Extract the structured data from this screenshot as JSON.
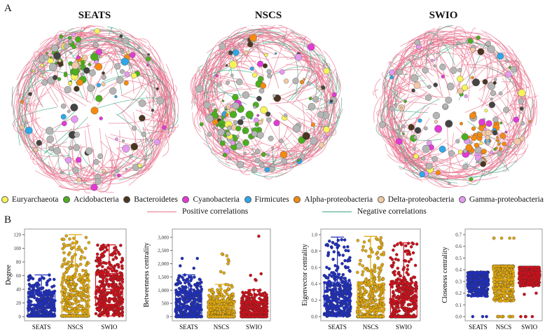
{
  "panel_a_label": "A",
  "panel_b_label": "B",
  "networks": [
    {
      "title": "SEATS"
    },
    {
      "title": "NSCS"
    },
    {
      "title": "SWIO"
    }
  ],
  "legend": {
    "taxa": [
      {
        "label": "Euryarchaeota",
        "color": "#f7f35a"
      },
      {
        "label": "Acidobacteria",
        "color": "#4cae1e"
      },
      {
        "label": "Bacteroidetes",
        "color": "#4a3520"
      },
      {
        "label": "Cyanobacteria",
        "color": "#e23ad6"
      },
      {
        "label": "Firmicutes",
        "color": "#2ea7e8"
      },
      {
        "label": "Alpha-proteobacteria",
        "color": "#f48a10"
      },
      {
        "label": "Delta-proteobacteria",
        "color": "#f2c9a6"
      },
      {
        "label": "Gamma-proteobacteria",
        "color": "#e49af0"
      }
    ],
    "edges": [
      {
        "label": "Positive correlations",
        "color": "#e8738f"
      },
      {
        "label": "Negative correlations",
        "color": "#3ca67e"
      }
    ]
  },
  "chart_data": [
    {
      "type": "box-strip",
      "ylabel": "Degree",
      "categories": [
        "SEATS",
        "NSCS",
        "SWIO"
      ],
      "ylim": [
        0,
        120
      ],
      "yticks": [
        0,
        20,
        40,
        60,
        80,
        100,
        120
      ],
      "tick_labels": [
        "0",
        "20",
        "40",
        "60",
        "80",
        "100",
        "120"
      ],
      "series": [
        {
          "name": "SEATS",
          "color": "#1f2fc0",
          "min": 1,
          "q1": 1,
          "median": 18,
          "q3": 35,
          "max": 61
        },
        {
          "name": "NSCS",
          "color": "#e0a80e",
          "min": 1,
          "q1": 1,
          "median": 8,
          "q3": 58,
          "max": 120
        },
        {
          "name": "SWIO",
          "color": "#d0101a",
          "min": 1,
          "q1": 18,
          "median": 40,
          "q3": 63,
          "max": 105
        }
      ]
    },
    {
      "type": "box-strip",
      "ylabel": "Betweenness centrality",
      "categories": [
        "SEATS",
        "NSCS",
        "SWIO"
      ],
      "ylim": [
        0,
        3100
      ],
      "yticks": [
        0,
        500,
        1000,
        1500,
        2000,
        2500,
        3000
      ],
      "tick_labels": [
        "0",
        "500",
        "1,000",
        "1,500",
        "2,000",
        "2,500",
        "3,000"
      ],
      "series": [
        {
          "name": "SEATS",
          "color": "#1f2fc0",
          "min": 0,
          "q1": 0,
          "median": 300,
          "q3": 900,
          "max": 1580,
          "outliers": [
            2200,
            2200,
            1920,
            1830
          ]
        },
        {
          "name": "NSCS",
          "color": "#e0a80e",
          "min": 0,
          "q1": 0,
          "median": 380,
          "q3": 580,
          "max": 1220,
          "outliers": [
            2350,
            2300,
            2370,
            2100,
            2160,
            2000,
            1700,
            1650
          ]
        },
        {
          "name": "SWIO",
          "color": "#d0101a",
          "min": 0,
          "q1": 0,
          "median": 150,
          "q3": 560,
          "max": 1020,
          "outliers": [
            3040,
            1620,
            1560,
            1400,
            1370
          ]
        }
      ]
    },
    {
      "type": "box-strip",
      "ylabel": "Eigenvector centrality",
      "categories": [
        "SEATS",
        "NSCS",
        "SWIO"
      ],
      "ylim": [
        0,
        1
      ],
      "yticks": [
        0,
        0.2,
        0.4,
        0.6,
        0.8,
        1.0
      ],
      "tick_labels": [
        "0.0",
        "0.2",
        "0.4",
        "0.6",
        "0.8",
        "1.0"
      ],
      "series": [
        {
          "name": "SEATS",
          "color": "#1f2fc0",
          "min": 0,
          "q1": 0.12,
          "median": 0.2,
          "q3": 0.42,
          "max": 0.97
        },
        {
          "name": "NSCS",
          "color": "#e0a80e",
          "min": 0,
          "q1": 0,
          "median": 0.08,
          "q3": 0.4,
          "max": 0.98
        },
        {
          "name": "SWIO",
          "color": "#d0101a",
          "min": 0,
          "q1": 0,
          "median": 0.2,
          "q3": 0.41,
          "max": 0.9
        }
      ]
    },
    {
      "type": "box-strip",
      "ylabel": "Closeness centrality",
      "categories": [
        "SEATS",
        "NSCS",
        "SWIO"
      ],
      "ylim": [
        0,
        0.7
      ],
      "yticks": [
        0,
        0.1,
        0.2,
        0.3,
        0.4,
        0.5,
        0.6,
        0.7
      ],
      "tick_labels": [
        "0.0",
        "0.1",
        "0.2",
        "0.3",
        "0.4",
        "0.5",
        "0.6",
        "0.7"
      ],
      "series": [
        {
          "name": "SEATS",
          "color": "#1f2fc0",
          "min": 0.17,
          "q1": 0.26,
          "median": 0.31,
          "q3": 0.37,
          "max": 0.38,
          "outliers": [
            0,
            0,
            0
          ]
        },
        {
          "name": "NSCS",
          "color": "#e0a80e",
          "min": 0.13,
          "q1": 0.24,
          "median": 0.32,
          "q3": 0.43,
          "max": 0.43,
          "outliers": [
            0.67,
            0.67,
            0.67,
            0.67,
            0.67,
            0,
            0,
            0,
            0,
            0,
            0,
            0,
            0,
            0,
            0
          ]
        },
        {
          "name": "SWIO",
          "color": "#d0101a",
          "min": 0.26,
          "q1": 0.33,
          "median": 0.37,
          "q3": 0.42,
          "max": 0.42,
          "outliers": [
            0,
            0,
            0,
            0,
            0.19,
            0.2
          ]
        }
      ]
    }
  ]
}
